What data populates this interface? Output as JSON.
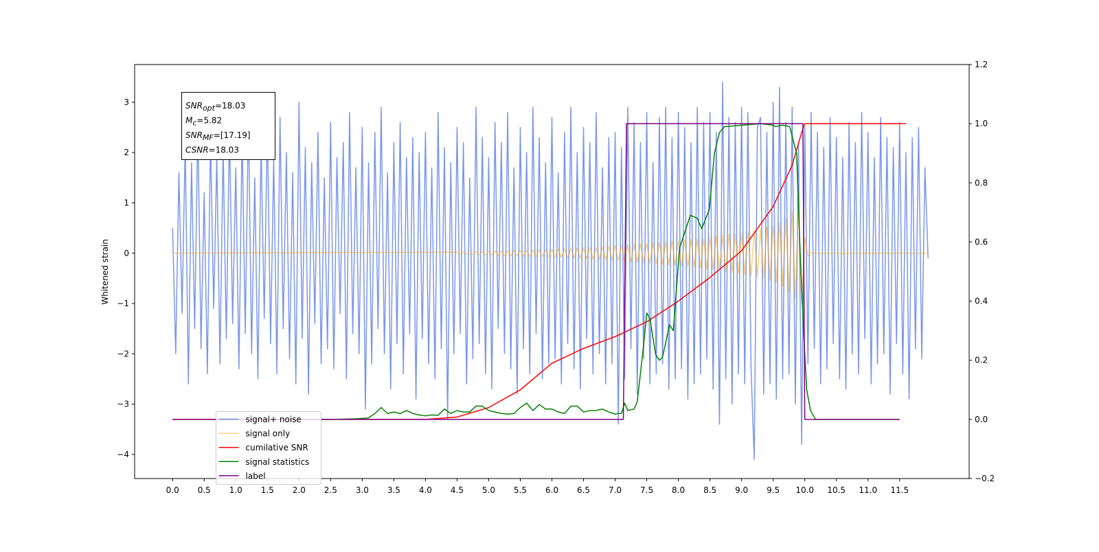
{
  "chart_data": {
    "type": "line",
    "y_label": "Whitened strain",
    "xlim": [
      -0.6,
      12.6
    ],
    "ylim": [
      -4.48,
      3.75
    ],
    "y2lim": [
      -0.2,
      1.2
    ],
    "xticks": [
      {
        "value": 0,
        "label": "0.0"
      },
      {
        "value": 0.5,
        "label": "0.5"
      },
      {
        "value": 1,
        "label": "1.0"
      },
      {
        "value": 1.5,
        "label": "1.5"
      },
      {
        "value": 2,
        "label": "2.0"
      },
      {
        "value": 2.5,
        "label": "2.5"
      },
      {
        "value": 3,
        "label": "3.0"
      },
      {
        "value": 3.5,
        "label": "3.5"
      },
      {
        "value": 4,
        "label": "4.0"
      },
      {
        "value": 4.5,
        "label": "4.5"
      },
      {
        "value": 5,
        "label": "5.0"
      },
      {
        "value": 5.5,
        "label": "5.5"
      },
      {
        "value": 6,
        "label": "6.0"
      },
      {
        "value": 6.5,
        "label": "6.5"
      },
      {
        "value": 7,
        "label": "7.0"
      },
      {
        "value": 7.5,
        "label": "7.5"
      },
      {
        "value": 8,
        "label": "8.0"
      },
      {
        "value": 8.5,
        "label": "8.5"
      },
      {
        "value": 9,
        "label": "9.0"
      },
      {
        "value": 9.5,
        "label": "9.5"
      },
      {
        "value": 10,
        "label": "10.0"
      },
      {
        "value": 10.5,
        "label": "10.5"
      },
      {
        "value": 11,
        "label": "11.0"
      },
      {
        "value": 11.5,
        "label": "11.5"
      }
    ],
    "yticks": [
      {
        "value": -4,
        "label": "−4"
      },
      {
        "value": -3,
        "label": "−3"
      },
      {
        "value": -2,
        "label": "−2"
      },
      {
        "value": -1,
        "label": "−1"
      },
      0,
      1,
      2,
      3
    ],
    "y2ticks": [
      {
        "value": -0.2,
        "label": "−0.2"
      },
      {
        "value": 0,
        "label": "0.0"
      },
      {
        "value": 0.2,
        "label": "0.2"
      },
      {
        "value": 0.4,
        "label": "0.4"
      },
      {
        "value": 0.6,
        "label": "0.6"
      },
      {
        "value": 0.8,
        "label": "0.8"
      },
      {
        "value": 1,
        "label": "1.0"
      },
      {
        "value": 1.2,
        "label": "1.2"
      }
    ],
    "legend": "lower left",
    "annotation": [
      {
        "symbol": "SNR",
        "subscript": "opt",
        "text": "=18.03"
      },
      {
        "symbol": "M",
        "subscript": "c",
        "text": "=5.82"
      },
      {
        "symbol": "SNR",
        "subscript": "MF",
        "text": "=[17.19]"
      },
      {
        "symbol": "CSNR",
        "text": "=18.03"
      }
    ],
    "series": [
      {
        "name": "signal+ noise",
        "color": "#4169e1",
        "alpha": 0.7,
        "axis": "y",
        "x": [
          0,
          0.05,
          0.1,
          0.15,
          0.2,
          0.25,
          0.3,
          0.35,
          0.4,
          0.45,
          0.5,
          0.55,
          0.6,
          0.65,
          0.7,
          0.75,
          0.8,
          0.85,
          0.9,
          0.95,
          1,
          1.05,
          1.1,
          1.15,
          1.2,
          1.25,
          1.3,
          1.35,
          1.4,
          1.45,
          1.5,
          1.55,
          1.6,
          1.65,
          1.7,
          1.75,
          1.8,
          1.85,
          1.9,
          1.95,
          2,
          2.05,
          2.1,
          2.15,
          2.2,
          2.25,
          2.3,
          2.35,
          2.4,
          2.45,
          2.5,
          2.55,
          2.6,
          2.65,
          2.7,
          2.75,
          2.8,
          2.85,
          2.9,
          2.95,
          3,
          3.05,
          3.1,
          3.15,
          3.2,
          3.25,
          3.3,
          3.35,
          3.4,
          3.45,
          3.5,
          3.55,
          3.6,
          3.65,
          3.7,
          3.75,
          3.8,
          3.85,
          3.9,
          3.95,
          4,
          4.05,
          4.1,
          4.15,
          4.2,
          4.25,
          4.3,
          4.35,
          4.4,
          4.45,
          4.5,
          4.55,
          4.6,
          4.65,
          4.7,
          4.75,
          4.8,
          4.85,
          4.9,
          4.95,
          5,
          5.05,
          5.1,
          5.15,
          5.2,
          5.25,
          5.3,
          5.35,
          5.4,
          5.45,
          5.5,
          5.55,
          5.6,
          5.65,
          5.7,
          5.75,
          5.8,
          5.85,
          5.9,
          5.95,
          6,
          6.05,
          6.1,
          6.15,
          6.2,
          6.25,
          6.3,
          6.35,
          6.4,
          6.45,
          6.5,
          6.55,
          6.6,
          6.65,
          6.7,
          6.75,
          6.8,
          6.85,
          6.9,
          6.95,
          7,
          7.05,
          7.1,
          7.15,
          7.2,
          7.25,
          7.3,
          7.35,
          7.4,
          7.45,
          7.5,
          7.55,
          7.6,
          7.65,
          7.7,
          7.75,
          7.8,
          7.85,
          7.9,
          7.95,
          8,
          8.05,
          8.1,
          8.15,
          8.2,
          8.25,
          8.3,
          8.35,
          8.4,
          8.45,
          8.5,
          8.55,
          8.6,
          8.65,
          8.7,
          8.75,
          8.8,
          8.85,
          8.9,
          8.95,
          9,
          9.05,
          9.1,
          9.15,
          9.2,
          9.25,
          9.3,
          9.35,
          9.4,
          9.45,
          9.5,
          9.55,
          9.6,
          9.65,
          9.7,
          9.75,
          9.8,
          9.85,
          9.9,
          9.95,
          10,
          10.05,
          10.1,
          10.15,
          10.2,
          10.25,
          10.3,
          10.35,
          10.4,
          10.45,
          10.5,
          10.55,
          10.6,
          10.65,
          10.7,
          10.75,
          10.8,
          10.85,
          10.9,
          10.95,
          11,
          11.05,
          11.1,
          11.15,
          11.2,
          11.25,
          11.3,
          11.35,
          11.4,
          11.45,
          11.5,
          11.55,
          11.6,
          11.65,
          11.7,
          11.75,
          11.8,
          11.85,
          11.9,
          11.95
        ],
        "values": [
          0.5,
          -2.0,
          1.6,
          -1.2,
          2.2,
          -2.6,
          1.8,
          -1.5,
          2.6,
          -1.9,
          1.2,
          -2.4,
          2.3,
          -1.1,
          1.9,
          -2.2,
          2.1,
          -1.7,
          2.5,
          -1.4,
          1.7,
          -2.3,
          2.4,
          -1.6,
          2.8,
          -2.0,
          1.5,
          -2.5,
          2.2,
          -1.3,
          2.6,
          -1.8,
          1.9,
          -2.4,
          2.7,
          -1.5,
          2.0,
          -2.1,
          1.6,
          -2.6,
          3.0,
          -1.7,
          2.1,
          -2.8,
          1.8,
          -1.4,
          2.4,
          -2.2,
          1.5,
          -1.9,
          2.6,
          -2.3,
          1.9,
          -1.2,
          2.2,
          -2.5,
          2.8,
          -1.6,
          1.7,
          -2.0,
          2.5,
          -3.1,
          1.8,
          -2.2,
          2.4,
          -1.5,
          2.9,
          -2.0,
          1.6,
          -2.7,
          2.2,
          -1.8,
          2.6,
          -2.4,
          1.9,
          -1.6,
          2.3,
          -2.9,
          2.0,
          -1.7,
          2.4,
          -2.2,
          1.7,
          -2.5,
          2.8,
          -1.9,
          2.1,
          -3.3,
          1.8,
          -2.0,
          2.5,
          -1.6,
          2.2,
          -2.6,
          1.5,
          -2.1,
          2.9,
          -1.8,
          2.3,
          -2.4,
          1.9,
          -2.7,
          2.6,
          -1.5,
          2.2,
          -2.0,
          2.8,
          -2.3,
          1.7,
          -2.8,
          2.5,
          -1.9,
          2.0,
          -2.4,
          2.9,
          -1.6,
          2.3,
          -2.5,
          1.8,
          -2.2,
          2.7,
          -2.1,
          1.6,
          -2.6,
          2.4,
          -1.8,
          2.9,
          -2.3,
          2.0,
          -2.7,
          2.5,
          -1.7,
          2.2,
          -2.4,
          2.8,
          -2.0,
          1.7,
          -2.6,
          2.3,
          -2.2,
          2.4,
          -3.4,
          2.1,
          -2.5,
          2.9,
          -1.9,
          2.6,
          -2.8,
          2.2,
          -2.1,
          2.8,
          -2.6,
          1.8,
          -2.4,
          2.7,
          -2.2,
          2.9,
          -2.7,
          2.3,
          -2.5,
          2.8,
          -2.3,
          2.5,
          -2.9,
          2.2,
          -2.6,
          2.9,
          -2.4,
          2.6,
          -2.1,
          2.8,
          -2.7,
          2.4,
          -3.4,
          3.4,
          -2.5,
          2.7,
          -3.0,
          2.6,
          -2.4,
          2.9,
          -2.6,
          2.8,
          -2.3,
          -4.1,
          2.5,
          2.7,
          -2.8,
          2.4,
          -2.6,
          3.0,
          -2.9,
          3.3,
          -2.5,
          2.6,
          -2.4,
          2.9,
          -3.0,
          2.2,
          -3.8,
          2.5,
          -2.2,
          2.8,
          -1.9,
          2.4,
          -2.6,
          2.1,
          -2.3,
          2.7,
          -1.8,
          2.3,
          -2.5,
          1.9,
          -2.7,
          2.6,
          -2.0,
          2.2,
          -2.4,
          2.8,
          -1.7,
          2.4,
          -2.6,
          1.9,
          -2.2,
          2.7,
          -2.0,
          2.3,
          -2.8,
          2.1,
          -1.8,
          2.6,
          -2.4,
          2.0,
          -2.9,
          2.3,
          -1.9,
          2.5,
          -2.1,
          1.7,
          -0.1
        ]
      },
      {
        "name": "signal only",
        "color": "#ffa500",
        "alpha": 0.5,
        "axis": "y",
        "x": [
          0,
          4.5,
          4.55,
          4.6,
          4.65,
          4.7,
          4.75,
          4.8,
          4.85,
          4.9,
          4.95,
          5,
          5.05,
          5.1,
          5.15,
          5.2,
          5.25,
          5.3,
          5.35,
          5.4,
          5.45,
          5.5,
          5.55,
          5.6,
          5.65,
          5.7,
          5.75,
          5.8,
          5.85,
          5.9,
          5.95,
          6,
          6.05,
          6.1,
          6.15,
          6.2,
          6.25,
          6.3,
          6.35,
          6.4,
          6.45,
          6.5,
          6.55,
          6.6,
          6.65,
          6.7,
          6.75,
          6.8,
          6.85,
          6.9,
          6.95,
          7,
          7.05,
          7.1,
          7.15,
          7.2,
          7.25,
          7.3,
          7.35,
          7.4,
          7.45,
          7.5,
          7.55,
          7.6,
          7.65,
          7.7,
          7.75,
          7.8,
          7.85,
          7.9,
          7.95,
          8,
          8.05,
          8.1,
          8.15,
          8.2,
          8.25,
          8.3,
          8.35,
          8.4,
          8.45,
          8.5,
          8.55,
          8.6,
          8.65,
          8.7,
          8.75,
          8.8,
          8.85,
          8.9,
          8.95,
          9,
          9.05,
          9.1,
          9.15,
          9.2,
          9.25,
          9.3,
          9.35,
          9.4,
          9.45,
          9.5,
          9.55,
          9.6,
          9.65,
          9.7,
          9.75,
          9.8,
          9.85,
          9.9,
          9.95,
          10,
          10.05,
          10.1,
          10.15,
          11.95
        ],
        "values": [
          0,
          0.02,
          -0.02,
          0.02,
          -0.025,
          0.025,
          -0.025,
          0.03,
          -0.03,
          0.03,
          -0.035,
          0.04,
          -0.04,
          0.04,
          -0.045,
          0.045,
          -0.05,
          0.05,
          -0.05,
          0.055,
          -0.055,
          0.06,
          -0.06,
          0.06,
          -0.065,
          0.065,
          -0.07,
          0.07,
          -0.075,
          0.075,
          -0.08,
          0.08,
          -0.085,
          0.085,
          -0.09,
          0.09,
          -0.095,
          0.095,
          -0.1,
          0.1,
          -0.105,
          0.11,
          -0.11,
          0.115,
          -0.12,
          0.12,
          -0.125,
          0.13,
          -0.135,
          0.14,
          -0.145,
          0.15,
          -0.155,
          0.16,
          -0.165,
          0.17,
          -0.175,
          0.18,
          -0.185,
          0.19,
          -0.195,
          0.2,
          -0.205,
          0.21,
          -0.215,
          0.22,
          -0.225,
          0.23,
          -0.235,
          0.24,
          -0.245,
          0.25,
          -0.255,
          0.26,
          -0.27,
          0.275,
          -0.28,
          0.29,
          -0.295,
          0.3,
          -0.31,
          0.32,
          -0.33,
          0.34,
          -0.35,
          0.36,
          -0.37,
          0.38,
          -0.385,
          0.39,
          -0.4,
          0.41,
          -0.42,
          0.43,
          -0.445,
          0.46,
          -0.475,
          0.49,
          -0.505,
          0.52,
          -0.535,
          0.55,
          -0.58,
          0.61,
          -0.65,
          0.7,
          -0.76,
          0.83,
          -0.9,
          0.97,
          -1.0,
          0.3,
          -0.05,
          0.02,
          0,
          0
        ]
      },
      {
        "name": "cumilative SNR",
        "color": "#ff0000",
        "alpha": 1,
        "axis": "y2",
        "x": [
          0,
          4.0,
          4.5,
          5.0,
          5.5,
          6.0,
          6.5,
          7.0,
          7.5,
          8.0,
          8.5,
          9.0,
          9.5,
          9.8,
          9.95,
          10.0,
          11.6
        ],
        "values": [
          0,
          0,
          0.008,
          0.04,
          0.1,
          0.19,
          0.24,
          0.28,
          0.33,
          0.4,
          0.48,
          0.57,
          0.72,
          0.86,
          0.97,
          1.0,
          1.0
        ]
      },
      {
        "name": "signal statistics",
        "color": "#008000",
        "alpha": 1,
        "axis": "y2",
        "x": [
          0.75,
          1.0,
          1.5,
          2.0,
          2.5,
          2.9,
          3.1,
          3.2,
          3.3,
          3.4,
          3.5,
          3.6,
          3.7,
          3.8,
          3.9,
          4.0,
          4.1,
          4.2,
          4.3,
          4.4,
          4.5,
          4.6,
          4.7,
          4.8,
          4.9,
          5.0,
          5.1,
          5.2,
          5.3,
          5.4,
          5.5,
          5.6,
          5.7,
          5.8,
          5.9,
          6.0,
          6.1,
          6.2,
          6.3,
          6.4,
          6.5,
          6.6,
          6.7,
          6.8,
          6.9,
          7.0,
          7.05,
          7.1,
          7.15,
          7.2,
          7.3,
          7.35,
          7.45,
          7.5,
          7.55,
          7.64,
          7.7,
          7.75,
          7.86,
          7.92,
          8.02,
          8.19,
          8.3,
          8.37,
          8.49,
          8.57,
          8.65,
          8.73,
          9.3,
          9.49,
          9.54,
          9.65,
          9.76,
          9.87,
          9.92,
          9.98,
          10.03,
          10.09,
          10.17,
          10.3,
          11.5
        ],
        "values": [
          0,
          0,
          0,
          0,
          0,
          0.002,
          0.005,
          0.02,
          0.04,
          0.02,
          0.025,
          0.02,
          0.03,
          0.02,
          0.015,
          0.012,
          0.015,
          0.014,
          0.035,
          0.02,
          0.03,
          0.025,
          0.025,
          0.045,
          0.045,
          0.03,
          0.025,
          0.02,
          0.018,
          0.02,
          0.04,
          0.055,
          0.03,
          0.05,
          0.035,
          0.035,
          0.025,
          0.02,
          0.045,
          0.045,
          0.025,
          0.03,
          0.03,
          0.035,
          0.025,
          0.018,
          0.02,
          0.02,
          0.055,
          0.03,
          0.035,
          0.06,
          0.25,
          0.36,
          0.34,
          0.22,
          0.2,
          0.21,
          0.32,
          0.3,
          0.58,
          0.69,
          0.68,
          0.645,
          0.71,
          0.9,
          0.97,
          0.99,
          1.0,
          0.995,
          0.99,
          0.995,
          0.99,
          0.9,
          0.6,
          0.3,
          0.1,
          0.03,
          0,
          0,
          0
        ]
      },
      {
        "name": "label",
        "color": "#800080",
        "alpha": 1,
        "axis": "y2",
        "x": [
          0,
          7.13,
          7.18,
          9.97,
          10.0,
          11.5
        ],
        "values": [
          0,
          0,
          1,
          1,
          0,
          0
        ]
      }
    ]
  }
}
